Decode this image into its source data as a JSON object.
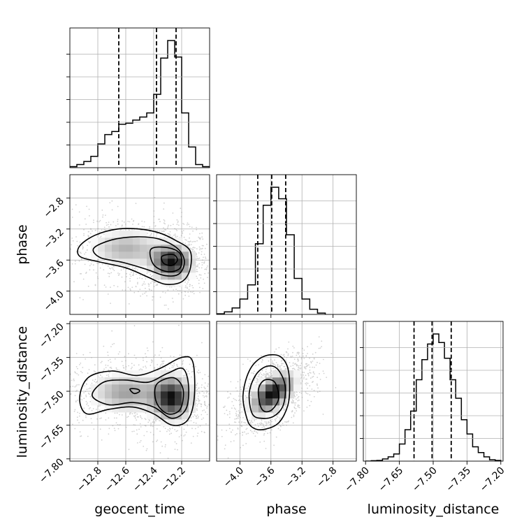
{
  "chart_data": {
    "type": "corner",
    "parameters": [
      "geocent_time",
      "phase",
      "luminosity_distance"
    ],
    "axis_labels": {
      "geocent_time": "geocent_time",
      "phase": "phase",
      "luminosity_distance": "luminosity_distance"
    },
    "ranges": {
      "geocent_time": [
        -13.0,
        -12.0
      ],
      "phase": [
        -4.3,
        -2.5
      ],
      "luminosity_distance": [
        -7.81,
        -7.19
      ]
    },
    "ticks": {
      "geocent_time": [
        -12.8,
        -12.6,
        -12.4,
        -12.2
      ],
      "phase": [
        -4.0,
        -3.6,
        -3.2,
        -2.8
      ],
      "luminosity_distance": [
        -7.8,
        -7.65,
        -7.5,
        -7.35,
        -7.2
      ]
    },
    "tick_labels": {
      "geocent_time": [
        "−12.8",
        "−12.6",
        "−12.4",
        "−12.2"
      ],
      "phase": [
        "−4.0",
        "−3.6",
        "−3.2",
        "−2.8"
      ],
      "luminosity_distance": [
        "−7.80",
        "−7.65",
        "−7.50",
        "−7.35",
        "−7.20"
      ]
    },
    "quantiles": {
      "geocent_time": [
        -12.65,
        -12.38,
        -12.24
      ],
      "phase": [
        -3.77,
        -3.59,
        -3.41
      ],
      "luminosity_distance": [
        -7.585,
        -7.505,
        -7.42
      ]
    },
    "histograms": {
      "geocent_time": {
        "edges": [
          -13.0,
          -12.95,
          -12.9,
          -12.85,
          -12.8,
          -12.75,
          -12.7,
          -12.65,
          -12.6,
          -12.55,
          -12.5,
          -12.45,
          -12.4,
          -12.35,
          -12.3,
          -12.25,
          -12.2,
          -12.15,
          -12.1,
          -12.05,
          -12.0
        ],
        "counts": [
          0.5,
          1.5,
          3.0,
          5.5,
          11.5,
          16.0,
          17.5,
          21.0,
          21.5,
          23.0,
          24.5,
          26.5,
          35.5,
          53.0,
          61.5,
          53.5,
          26.5,
          10.0,
          1.5,
          0.5
        ]
      },
      "phase": {
        "edges": [
          -4.3,
          -4.2,
          -4.1,
          -4.0,
          -3.9,
          -3.8,
          -3.7,
          -3.6,
          -3.5,
          -3.4,
          -3.3,
          -3.2,
          -3.1,
          -3.0,
          -2.9
        ],
        "counts": [
          0.5,
          2,
          5,
          12,
          23,
          55,
          85,
          99,
          90,
          62,
          28,
          12,
          4,
          1
        ]
      },
      "luminosity_distance": {
        "edges": [
          -7.8,
          -7.775,
          -7.75,
          -7.725,
          -7.7,
          -7.675,
          -7.65,
          -7.625,
          -7.6,
          -7.575,
          -7.55,
          -7.525,
          -7.5,
          -7.475,
          -7.45,
          -7.425,
          -7.4,
          -7.375,
          -7.35,
          -7.325,
          -7.3,
          -7.275,
          -7.25,
          -7.225,
          -7.2
        ],
        "counts": [
          0,
          0.3,
          0.5,
          1.5,
          3,
          5,
          12,
          22,
          35,
          57,
          71,
          82,
          89,
          83,
          72,
          57,
          44,
          29,
          19,
          10,
          6,
          3,
          1,
          0.5
        ]
      }
    },
    "pairs": [
      {
        "x": "geocent_time",
        "y": "phase",
        "modes": [
          {
            "mean": [
              -12.27,
              -3.63
            ],
            "sd": [
              0.09,
              0.14
            ],
            "rho": 0,
            "weight": 0.55
          },
          {
            "mean": [
              -12.6,
              -3.45
            ],
            "sd": [
              0.16,
              0.15
            ],
            "rho": 0,
            "weight": 0.45
          }
        ],
        "contours": [
          [
            [
              -12.93,
              -3.42
            ],
            [
              -12.82,
              -3.28
            ],
            [
              -12.66,
              -3.2
            ],
            [
              -12.5,
              -3.2
            ],
            [
              -12.36,
              -3.25
            ],
            [
              -12.24,
              -3.35
            ],
            [
              -12.14,
              -3.48
            ],
            [
              -12.14,
              -3.72
            ],
            [
              -12.2,
              -3.88
            ],
            [
              -12.32,
              -3.91
            ],
            [
              -12.44,
              -3.82
            ],
            [
              -12.6,
              -3.7
            ],
            [
              -12.8,
              -3.62
            ],
            [
              -12.93,
              -3.55
            ]
          ],
          [
            [
              -12.83,
              -3.45
            ],
            [
              -12.7,
              -3.34
            ],
            [
              -12.52,
              -3.3
            ],
            [
              -12.36,
              -3.33
            ],
            [
              -12.23,
              -3.45
            ],
            [
              -12.18,
              -3.62
            ],
            [
              -12.22,
              -3.78
            ],
            [
              -12.32,
              -3.8
            ],
            [
              -12.45,
              -3.72
            ],
            [
              -12.62,
              -3.63
            ],
            [
              -12.78,
              -3.57
            ]
          ],
          [
            [
              -12.42,
              -3.46
            ],
            [
              -12.3,
              -3.44
            ],
            [
              -12.21,
              -3.52
            ],
            [
              -12.21,
              -3.7
            ],
            [
              -12.3,
              -3.75
            ],
            [
              -12.4,
              -3.66
            ]
          ],
          [
            [
              -12.34,
              -3.55
            ],
            [
              -12.26,
              -3.53
            ],
            [
              -12.23,
              -3.6
            ],
            [
              -12.27,
              -3.67
            ],
            [
              -12.33,
              -3.64
            ]
          ]
        ]
      },
      {
        "x": "geocent_time",
        "y": "luminosity_distance",
        "modes": [
          {
            "mean": [
              -12.27,
              -7.53
            ],
            "sd": [
              0.09,
              0.06
            ],
            "rho": 0,
            "weight": 0.55
          },
          {
            "mean": [
              -12.6,
              -7.505
            ],
            "sd": [
              0.16,
              0.055
            ],
            "rho": 0,
            "weight": 0.45
          }
        ],
        "contours": [
          [
            [
              -12.93,
              -7.53
            ],
            [
              -12.87,
              -7.44
            ],
            [
              -12.7,
              -7.41
            ],
            [
              -12.52,
              -7.43
            ],
            [
              -12.36,
              -7.4
            ],
            [
              -12.2,
              -7.35
            ],
            [
              -12.12,
              -7.37
            ],
            [
              -12.11,
              -7.53
            ],
            [
              -12.16,
              -7.63
            ],
            [
              -12.27,
              -7.65
            ],
            [
              -12.4,
              -7.6
            ],
            [
              -12.55,
              -7.57
            ],
            [
              -12.72,
              -7.58
            ],
            [
              -12.88,
              -7.6
            ]
          ],
          [
            [
              -12.84,
              -7.52
            ],
            [
              -12.76,
              -7.46
            ],
            [
              -12.6,
              -7.45
            ],
            [
              -12.44,
              -7.46
            ],
            [
              -12.3,
              -7.42
            ],
            [
              -12.19,
              -7.4
            ],
            [
              -12.15,
              -7.48
            ],
            [
              -12.17,
              -7.58
            ],
            [
              -12.27,
              -7.62
            ],
            [
              -12.4,
              -7.57
            ],
            [
              -12.55,
              -7.55
            ],
            [
              -12.72,
              -7.56
            ]
          ],
          [
            [
              -12.38,
              -7.47
            ],
            [
              -12.26,
              -7.44
            ],
            [
              -12.19,
              -7.49
            ],
            [
              -12.21,
              -7.58
            ],
            [
              -12.3,
              -7.6
            ],
            [
              -12.38,
              -7.55
            ]
          ],
          [
            [
              -12.57,
              -7.49
            ],
            [
              -12.52,
              -7.49
            ],
            [
              -12.5,
              -7.5
            ],
            [
              -12.54,
              -7.51
            ]
          ]
        ]
      },
      {
        "x": "phase",
        "y": "luminosity_distance",
        "modes": [
          {
            "mean": [
              -3.58,
              -7.51
            ],
            "sd": [
              0.17,
              0.055
            ],
            "rho": 0.55,
            "weight": 1.0
          }
        ],
        "contours": [
          [
            [
              -3.91,
              -7.62
            ],
            [
              -3.96,
              -7.52
            ],
            [
              -3.88,
              -7.41
            ],
            [
              -3.72,
              -7.35
            ],
            [
              -3.52,
              -7.34
            ],
            [
              -3.4,
              -7.38
            ],
            [
              -3.36,
              -7.46
            ],
            [
              -3.38,
              -7.56
            ],
            [
              -3.5,
              -7.64
            ],
            [
              -3.7,
              -7.67
            ],
            [
              -3.84,
              -7.66
            ]
          ],
          [
            [
              -3.84,
              -7.6
            ],
            [
              -3.88,
              -7.51
            ],
            [
              -3.8,
              -7.43
            ],
            [
              -3.66,
              -7.39
            ],
            [
              -3.52,
              -7.4
            ],
            [
              -3.42,
              -7.47
            ],
            [
              -3.44,
              -7.56
            ],
            [
              -3.56,
              -7.61
            ],
            [
              -3.72,
              -7.62
            ]
          ],
          [
            [
              -3.74,
              -7.56
            ],
            [
              -3.76,
              -7.49
            ],
            [
              -3.68,
              -7.45
            ],
            [
              -3.55,
              -7.46
            ],
            [
              -3.5,
              -7.53
            ],
            [
              -3.58,
              -7.58
            ],
            [
              -3.68,
              -7.59
            ]
          ]
        ]
      }
    ]
  }
}
